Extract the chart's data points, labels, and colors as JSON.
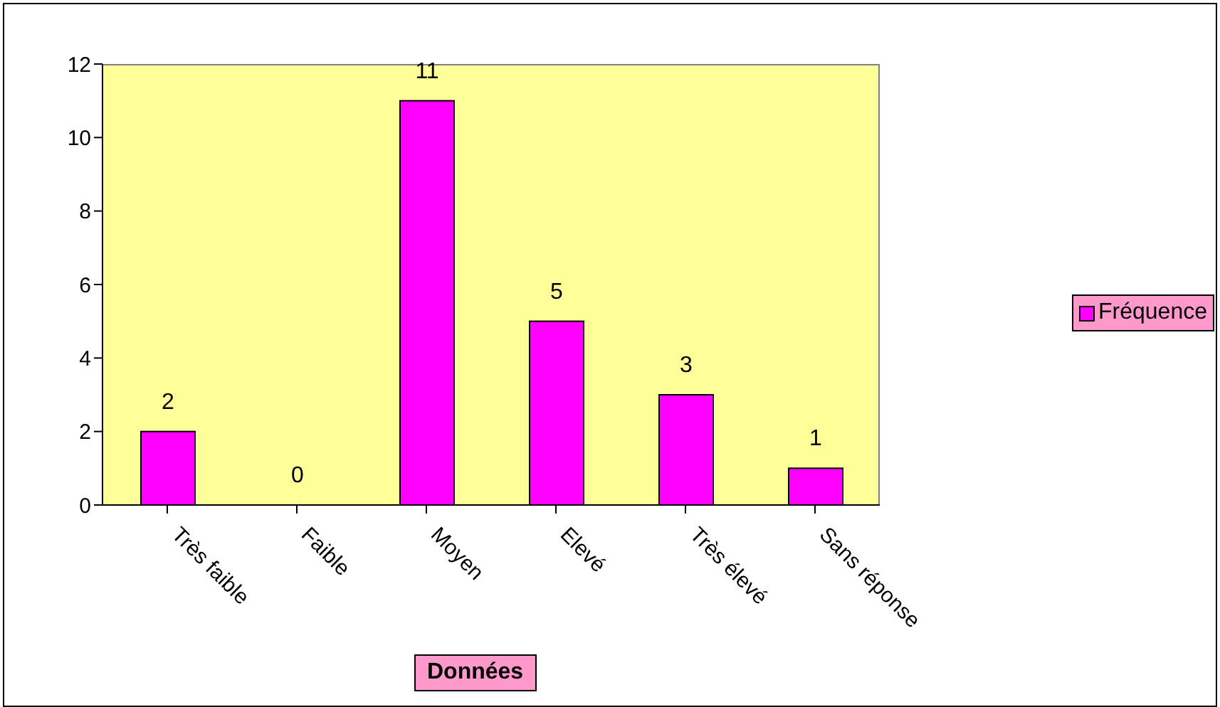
{
  "chart_data": {
    "type": "bar",
    "xlabel": "Données",
    "categories": [
      "Très faible",
      "Faible",
      "Moyen",
      "Elevé",
      "Très élevé",
      "Sans réponse"
    ],
    "series": [
      {
        "name": "Fréquence",
        "color": "#ff00ff",
        "values": [
          2,
          0,
          11,
          5,
          3,
          1
        ]
      }
    ],
    "ylim": [
      0,
      12
    ],
    "yticks": [
      0,
      2,
      4,
      6,
      8,
      10,
      12
    ],
    "data_labels": true,
    "grid": false,
    "legend": "right"
  }
}
